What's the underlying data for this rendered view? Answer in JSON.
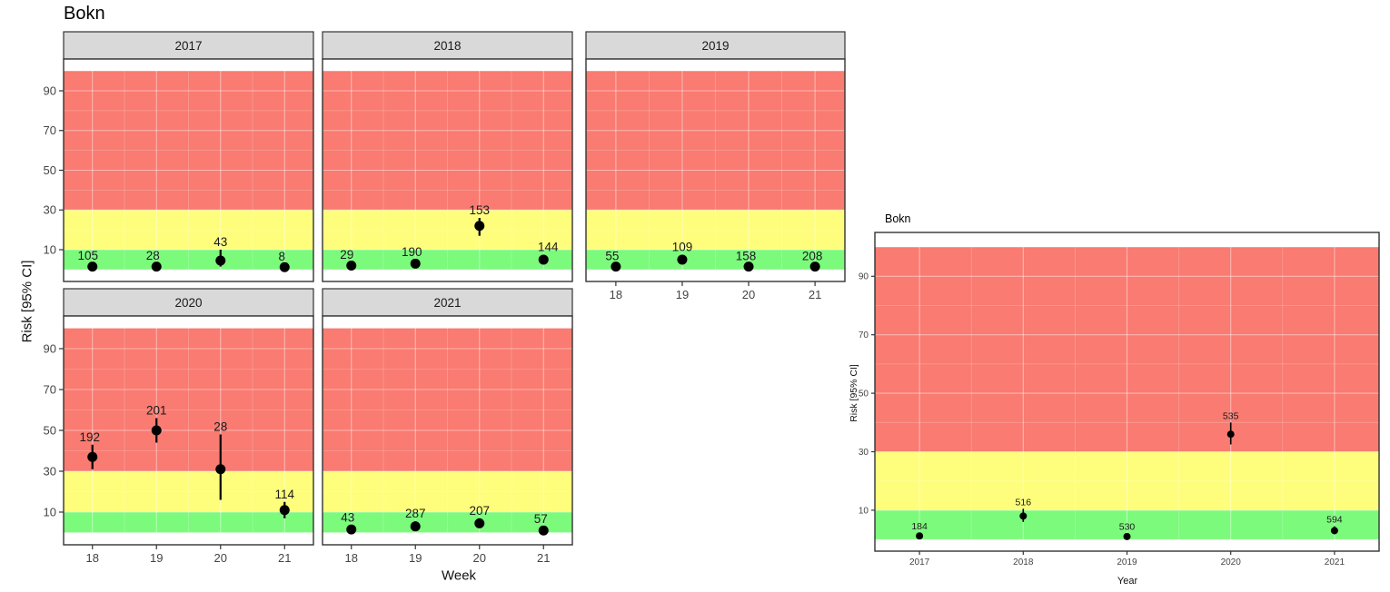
{
  "chart_data": [
    {
      "type": "pointrange",
      "title": "Bokn",
      "xlabel": "Week",
      "ylabel": "Risk [95% CI]",
      "facet_variable": "year",
      "x_ticks": [
        18,
        19,
        20,
        21
      ],
      "xlim": [
        17.55,
        21.45
      ],
      "ylim": [
        -6,
        106
      ],
      "y_ticks": [
        10,
        30,
        50,
        70,
        90
      ],
      "grid": true,
      "legend": "none",
      "risk_bands": [
        {
          "name": "low",
          "from": 0,
          "to": 10,
          "color": "#7CFA7C"
        },
        {
          "name": "medium",
          "from": 10,
          "to": 30,
          "color": "#FEFE7C"
        },
        {
          "name": "high",
          "from": 30,
          "to": 100,
          "color": "#F97B71"
        }
      ],
      "facets": [
        {
          "label": "2017",
          "row": 0,
          "col": 0,
          "show_x_axis": false,
          "show_y_axis": true,
          "points": [
            {
              "x": 18,
              "y": 1.5,
              "lo": 0.5,
              "hi": 3.2,
              "label": "105",
              "dx": -5
            },
            {
              "x": 19,
              "y": 1.5,
              "lo": 0.5,
              "hi": 3.2,
              "label": "28",
              "dx": -4
            },
            {
              "x": 20,
              "y": 4.5,
              "lo": 1.5,
              "hi": 10,
              "label": "43",
              "dx": 0
            },
            {
              "x": 21,
              "y": 1.2,
              "lo": 0.5,
              "hi": 2.6,
              "label": "8",
              "dx": -3
            }
          ]
        },
        {
          "label": "2018",
          "row": 0,
          "col": 1,
          "show_x_axis": false,
          "show_y_axis": false,
          "points": [
            {
              "x": 18,
              "y": 2,
              "lo": 1,
              "hi": 3.5,
              "label": "29",
              "dx": -5
            },
            {
              "x": 19,
              "y": 3,
              "lo": 1.5,
              "hi": 5,
              "label": "190",
              "dx": -4
            },
            {
              "x": 20,
              "y": 22,
              "lo": 17,
              "hi": 26,
              "label": "153",
              "dx": 0
            },
            {
              "x": 21,
              "y": 5,
              "lo": 3,
              "hi": 7.5,
              "label": "144",
              "dx": 5
            }
          ]
        },
        {
          "label": "2019",
          "row": 0,
          "col": 2,
          "show_x_axis": true,
          "show_y_axis": false,
          "points": [
            {
              "x": 18,
              "y": 1.5,
              "lo": 0.5,
              "hi": 3,
              "label": "55",
              "dx": -4
            },
            {
              "x": 19,
              "y": 5,
              "lo": 3,
              "hi": 7.5,
              "label": "109",
              "dx": 0
            },
            {
              "x": 20,
              "y": 1.5,
              "lo": 0.5,
              "hi": 3,
              "label": "158",
              "dx": -3
            },
            {
              "x": 21,
              "y": 1.5,
              "lo": 0.5,
              "hi": 3,
              "label": "208",
              "dx": -3
            }
          ]
        },
        {
          "label": "2020",
          "row": 1,
          "col": 0,
          "show_x_axis": true,
          "show_y_axis": true,
          "points": [
            {
              "x": 18,
              "y": 37,
              "lo": 31,
              "hi": 43,
              "label": "192",
              "dx": -3
            },
            {
              "x": 19,
              "y": 50,
              "lo": 44,
              "hi": 56,
              "label": "201",
              "dx": 0
            },
            {
              "x": 20,
              "y": 31,
              "lo": 16,
              "hi": 48,
              "label": "28",
              "dx": 0
            },
            {
              "x": 21,
              "y": 11,
              "lo": 7,
              "hi": 15,
              "label": "114",
              "dx": 0
            }
          ]
        },
        {
          "label": "2021",
          "row": 1,
          "col": 1,
          "show_x_axis": true,
          "show_y_axis": false,
          "points": [
            {
              "x": 18,
              "y": 1.5,
              "lo": 0.5,
              "hi": 3.5,
              "label": "43",
              "dx": -4
            },
            {
              "x": 19,
              "y": 3,
              "lo": 1.5,
              "hi": 5.5,
              "label": "287",
              "dx": 0
            },
            {
              "x": 20,
              "y": 4.5,
              "lo": 2.5,
              "hi": 7,
              "label": "207",
              "dx": 0
            },
            {
              "x": 21,
              "y": 1,
              "lo": 0.5,
              "hi": 3,
              "label": "57",
              "dx": -3
            }
          ]
        }
      ]
    },
    {
      "type": "pointrange",
      "title": "Bokn",
      "xlabel": "Year",
      "ylabel": "Risk [95% CI]",
      "x_ticks": [
        2017,
        2018,
        2019,
        2020,
        2021
      ],
      "xlim": [
        2016.57,
        2021.43
      ],
      "ylim": [
        -4,
        105
      ],
      "y_ticks": [
        10,
        30,
        50,
        70,
        90
      ],
      "grid": true,
      "legend": "none",
      "risk_bands": [
        {
          "name": "low",
          "from": 0,
          "to": 10,
          "color": "#7CFA7C"
        },
        {
          "name": "medium",
          "from": 10,
          "to": 30,
          "color": "#FEFE7C"
        },
        {
          "name": "high",
          "from": 30,
          "to": 100,
          "color": "#F97B71"
        }
      ],
      "points": [
        {
          "x": 2017,
          "y": 1.2,
          "lo": 0.6,
          "hi": 2.2,
          "label": "184",
          "dx": 0
        },
        {
          "x": 2018,
          "y": 8,
          "lo": 6,
          "hi": 10.5,
          "label": "516",
          "dx": 0
        },
        {
          "x": 2019,
          "y": 1,
          "lo": 0.5,
          "hi": 2,
          "label": "530",
          "dx": 0
        },
        {
          "x": 2020,
          "y": 36,
          "lo": 32.5,
          "hi": 40,
          "label": "535",
          "dx": 0
        },
        {
          "x": 2021,
          "y": 3,
          "lo": 2,
          "hi": 4.5,
          "label": "594",
          "dx": 0
        }
      ]
    }
  ],
  "style": {
    "strip_fill": "#D9D9D9",
    "panel_border": "#333333",
    "axis_text": "#444444",
    "point_color": "#000000",
    "label_color": "#1a1a1a"
  }
}
